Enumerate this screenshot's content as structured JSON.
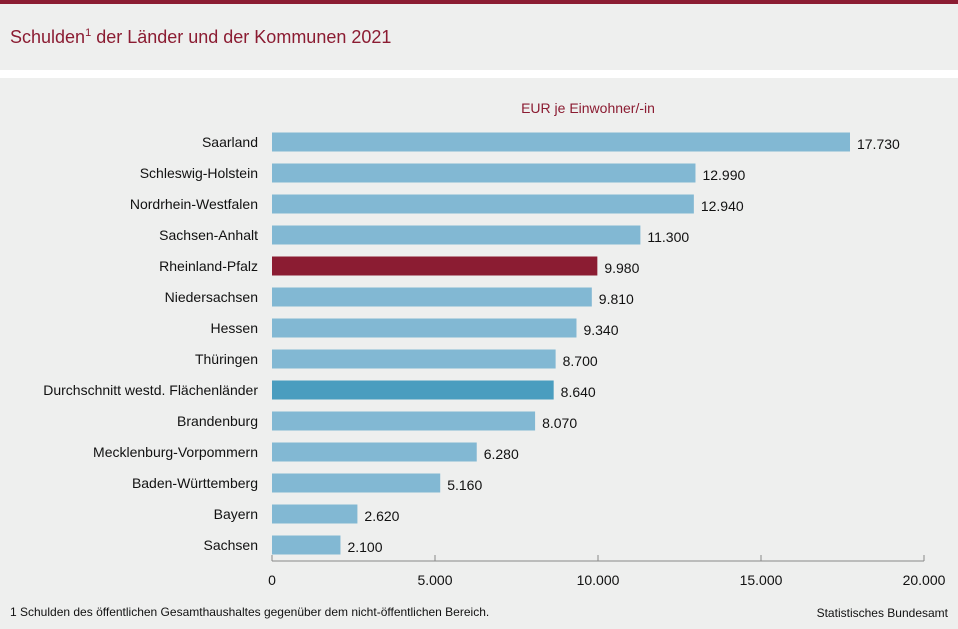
{
  "title": "Schulden",
  "title_sup": "1",
  "title_rest": " der Länder und der Kommunen 2021",
  "footnote": "1 Schulden des öffentlichen  Gesamthaushaltes gegenüber  dem nicht-öffentlichen  Bereich.",
  "source": "Statistisches Bundesamt",
  "colors": {
    "default": "#82b8d3",
    "highlight": "#8b1c32",
    "average": "#4a9dbf",
    "title": "#8b1c32"
  },
  "chart_data": {
    "type": "bar",
    "orientation": "horizontal",
    "unit_label": "EUR je Einwohner/-in",
    "categories": [
      "Saarland",
      "Schleswig-Holstein",
      "Nordrhein-Westfalen",
      "Sachsen-Anhalt",
      "Rheinland-Pfalz",
      "Niedersachsen",
      "Hessen",
      "Thüringen",
      "Durchschnitt westd. Flächenländer",
      "Brandenburg",
      "Mecklenburg-Vorpommern",
      "Baden-Württemberg",
      "Bayern",
      "Sachsen"
    ],
    "values": [
      17730,
      12990,
      12940,
      11300,
      9980,
      9810,
      9340,
      8700,
      8640,
      8070,
      6280,
      5160,
      2620,
      2100
    ],
    "value_labels": [
      "17.730",
      "12.990",
      "12.940",
      "11.300",
      "9.980",
      "9.810",
      "9.340",
      "8.700",
      "8.640",
      "8.070",
      "6.280",
      "5.160",
      "2.620",
      "2.100"
    ],
    "highlight": "Rheinland-Pfalz",
    "average": "Durchschnitt westd. Flächenländer",
    "xlim": [
      0,
      20000
    ],
    "xticks": [
      0,
      5000,
      10000,
      15000,
      20000
    ],
    "xtick_labels": [
      "0",
      "5.000",
      "10.000",
      "15.000",
      "20.000"
    ],
    "grid": false,
    "legend": "none"
  }
}
